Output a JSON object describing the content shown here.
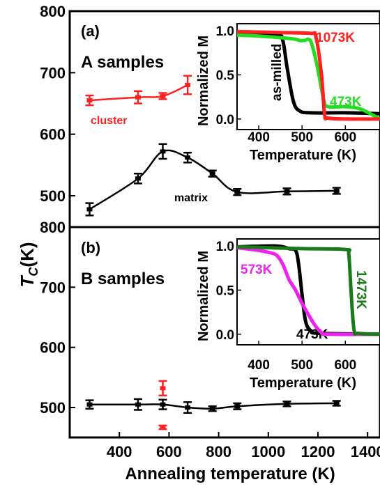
{
  "figure": {
    "ylabel_main": "T",
    "ylabel_sub": "C",
    "ylabel_unit": "(K)",
    "xlabel": "Annealing temperature (K)"
  },
  "chart_data": [
    {
      "id": "panel-a",
      "type": "line",
      "panel_label": "(a)",
      "title": "A samples",
      "xlim": [
        200,
        1450
      ],
      "ylim": [
        450,
        800
      ],
      "y_ticks": [
        500,
        600,
        700,
        800
      ],
      "series": [
        {
          "name": "cluster",
          "color": "#ff2020",
          "x": [
            280,
            475,
            575,
            675
          ],
          "y": [
            655,
            660,
            662,
            680
          ],
          "err": [
            8,
            10,
            5,
            15
          ]
        },
        {
          "name": "matrix",
          "color": "#000000",
          "x": [
            280,
            475,
            575,
            675,
            775,
            875,
            1075,
            1275
          ],
          "y": [
            478,
            528,
            572,
            562,
            536,
            506,
            507,
            508
          ],
          "err": [
            10,
            8,
            12,
            8,
            5,
            5,
            5,
            5
          ]
        }
      ],
      "inset": {
        "xlabel": "Temperature (K)",
        "ylabel": "Normalized M",
        "xlim": [
          350,
          680
        ],
        "ylim": [
          -0.12,
          1.08
        ],
        "x_ticks": [
          400,
          500,
          600
        ],
        "y_ticks": [
          0.0,
          0.5,
          1.0
        ],
        "y_tick_labels": [
          "0.0",
          "0.5",
          "1.0"
        ],
        "curves": [
          {
            "label": "as-milled",
            "color": "#000000",
            "points": [
              [
                350,
                0.97
              ],
              [
                440,
                0.95
              ],
              [
                455,
                0.9
              ],
              [
                465,
                0.6
              ],
              [
                480,
                0.2
              ],
              [
                495,
                0.09
              ],
              [
                520,
                0.07
              ],
              [
                600,
                0.07
              ],
              [
                680,
                0.06
              ]
            ]
          },
          {
            "label": "473K",
            "color": "#22dd22",
            "points": [
              [
                350,
                0.95
              ],
              [
                400,
                0.94
              ],
              [
                475,
                0.91
              ],
              [
                495,
                0.89
              ],
              [
                505,
                0.89
              ],
              [
                520,
                0.88
              ],
              [
                535,
                0.6
              ],
              [
                550,
                0.22
              ],
              [
                560,
                0.14
              ],
              [
                600,
                0.14
              ],
              [
                630,
                0.12
              ],
              [
                650,
                0.08
              ],
              [
                680,
                0.0
              ]
            ]
          },
          {
            "label": "1073K",
            "color": "#ff2020",
            "points": [
              [
                350,
                0.99
              ],
              [
                450,
                0.98
              ],
              [
                520,
                0.97
              ],
              [
                532,
                0.93
              ],
              [
                545,
                0.5
              ],
              [
                552,
                0.05
              ],
              [
                560,
                0.01
              ],
              [
                600,
                0.0
              ],
              [
                680,
                0.0
              ]
            ]
          }
        ]
      }
    },
    {
      "id": "panel-b",
      "type": "line",
      "panel_label": "(b)",
      "title": "B samples",
      "xlim": [
        200,
        1450
      ],
      "ylim": [
        430,
        800
      ],
      "y_ticks": [
        500,
        600,
        700,
        800
      ],
      "x_ticks": [
        400,
        600,
        800,
        1000,
        1200,
        1400
      ],
      "series": [
        {
          "name": "",
          "color": "#000000",
          "x": [
            280,
            475,
            575,
            675,
            775,
            875,
            1075,
            1275
          ],
          "y": [
            505,
            505,
            505,
            500,
            498,
            502,
            506,
            507
          ],
          "err": [
            7,
            9,
            8,
            9,
            4,
            5,
            4,
            4
          ]
        },
        {
          "name": "",
          "color": "#ff2020",
          "x": [
            575,
            575
          ],
          "y": [
            532,
            467
          ],
          "err": [
            12,
            3
          ],
          "connected": false
        }
      ],
      "inset": {
        "xlabel": "Temperature (K)",
        "ylabel": "Normalized M",
        "xlim": [
          350,
          680
        ],
        "ylim": [
          -0.12,
          1.08
        ],
        "x_ticks": [
          400,
          500,
          600
        ],
        "y_ticks": [
          0.0,
          0.5,
          1.0
        ],
        "y_tick_labels": [
          "0.0",
          "0.5",
          "1.0"
        ],
        "curves": [
          {
            "label": "473K",
            "color": "#000000",
            "points": [
              [
                350,
                0.99
              ],
              [
                440,
                1.0
              ],
              [
                470,
                0.97
              ],
              [
                485,
                0.95
              ],
              [
                492,
                0.8
              ],
              [
                500,
                0.45
              ],
              [
                508,
                0.15
              ],
              [
                520,
                0.04
              ],
              [
                540,
                0.01
              ],
              [
                680,
                0.0
              ]
            ]
          },
          {
            "label": "573K",
            "color": "#ee22ee",
            "points": [
              [
                350,
                0.98
              ],
              [
                400,
                0.95
              ],
              [
                420,
                0.93
              ],
              [
                440,
                0.9
              ],
              [
                455,
                0.8
              ],
              [
                470,
                0.62
              ],
              [
                485,
                0.5
              ],
              [
                500,
                0.35
              ],
              [
                515,
                0.22
              ],
              [
                530,
                0.1
              ],
              [
                545,
                0.02
              ],
              [
                560,
                0.0
              ],
              [
                680,
                0.0
              ]
            ]
          },
          {
            "label": "1473K",
            "color": "#1a7a1a",
            "points": [
              [
                350,
                0.99
              ],
              [
                500,
                0.97
              ],
              [
                600,
                0.96
              ],
              [
                608,
                0.9
              ],
              [
                613,
                0.5
              ],
              [
                620,
                0.05
              ],
              [
                630,
                0.01
              ],
              [
                680,
                0.0
              ]
            ]
          }
        ]
      }
    }
  ]
}
